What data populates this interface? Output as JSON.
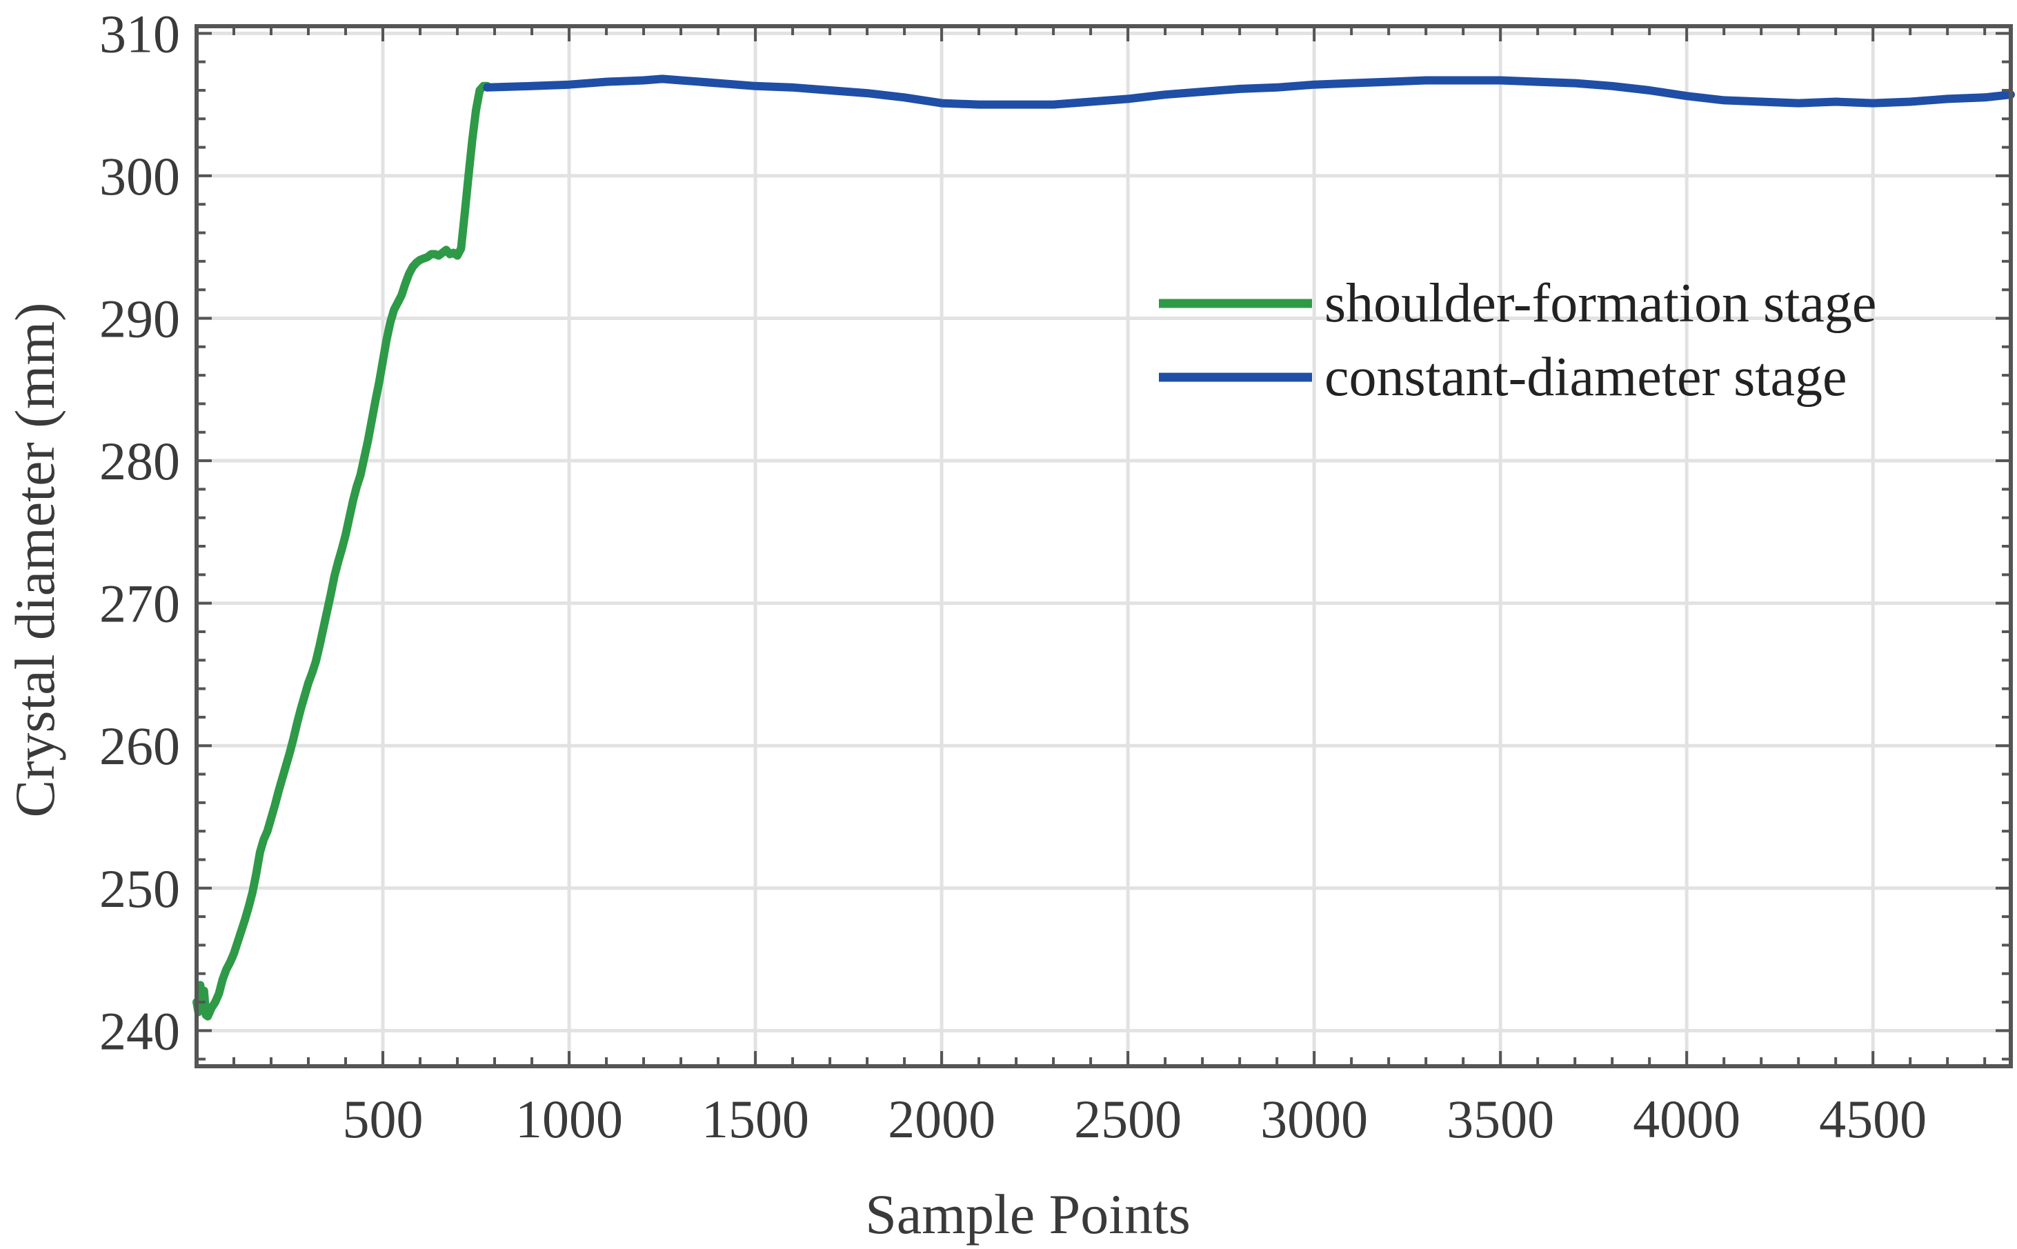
{
  "chart_data": {
    "type": "line",
    "title": "",
    "xlabel": "Sample Points",
    "ylabel": "Crystal diameter (mm)",
    "xlim": [
      0,
      4870
    ],
    "ylim": [
      237.5,
      310.5
    ],
    "xticks": [
      500,
      1000,
      1500,
      2000,
      2500,
      3000,
      3500,
      4000,
      4500
    ],
    "yticks": [
      240,
      250,
      260,
      270,
      280,
      290,
      300,
      310
    ],
    "grid": true,
    "legend_position": "upper-right",
    "series": [
      {
        "name": "shoulder-formation stage",
        "color": "#2e9a47",
        "x": [
          0,
          5,
          10,
          15,
          20,
          25,
          30,
          40,
          50,
          60,
          70,
          80,
          90,
          100,
          110,
          120,
          130,
          140,
          150,
          160,
          170,
          180,
          190,
          200,
          210,
          220,
          230,
          240,
          250,
          260,
          270,
          280,
          290,
          300,
          310,
          320,
          330,
          340,
          350,
          360,
          370,
          380,
          390,
          400,
          410,
          420,
          430,
          440,
          450,
          460,
          470,
          480,
          490,
          500,
          510,
          520,
          530,
          540,
          550,
          560,
          570,
          580,
          590,
          600,
          610,
          620,
          630,
          640,
          650,
          660,
          670,
          680,
          690,
          700,
          710,
          720,
          730,
          740,
          750,
          760,
          770,
          780
        ],
        "y": [
          242.0,
          241.3,
          243.2,
          241.8,
          242.8,
          241.1,
          241.0,
          241.6,
          242.0,
          242.6,
          243.6,
          244.3,
          244.8,
          245.4,
          246.2,
          247.0,
          247.8,
          248.7,
          249.7,
          251.0,
          252.5,
          253.4,
          254.0,
          254.9,
          255.8,
          256.8,
          257.7,
          258.6,
          259.5,
          260.5,
          261.6,
          262.6,
          263.5,
          264.4,
          265.1,
          265.9,
          267.0,
          268.2,
          269.4,
          270.6,
          271.9,
          272.9,
          273.8,
          274.8,
          276.0,
          277.2,
          278.2,
          279.0,
          280.2,
          281.4,
          282.8,
          284.2,
          285.5,
          287.0,
          288.5,
          289.7,
          290.6,
          291.1,
          291.6,
          292.4,
          293.1,
          293.6,
          293.9,
          294.1,
          294.2,
          294.3,
          294.5,
          294.5,
          294.4,
          294.6,
          294.8,
          294.5,
          294.6,
          294.4,
          294.9,
          297.4,
          300.0,
          302.5,
          304.6,
          306.0,
          306.3,
          306.3
        ],
        "note": ""
      },
      {
        "name": "constant-diameter stage",
        "color": "#1f4ea6",
        "x": [
          780,
          900,
          1000,
          1100,
          1200,
          1250,
          1300,
          1400,
          1500,
          1600,
          1700,
          1800,
          1900,
          2000,
          2100,
          2200,
          2300,
          2400,
          2500,
          2600,
          2700,
          2800,
          2900,
          3000,
          3100,
          3200,
          3300,
          3400,
          3500,
          3600,
          3700,
          3800,
          3900,
          4000,
          4100,
          4200,
          4300,
          4400,
          4500,
          4600,
          4700,
          4800,
          4870
        ],
        "y": [
          306.2,
          306.3,
          306.4,
          306.6,
          306.7,
          306.8,
          306.7,
          306.5,
          306.3,
          306.2,
          306.0,
          305.8,
          305.5,
          305.1,
          305.0,
          305.0,
          305.0,
          305.2,
          305.4,
          305.7,
          305.9,
          306.1,
          306.2,
          306.4,
          306.5,
          306.6,
          306.7,
          306.7,
          306.7,
          306.6,
          306.5,
          306.3,
          306.0,
          305.6,
          305.3,
          305.2,
          305.1,
          305.2,
          305.1,
          305.2,
          305.4,
          305.5,
          305.7
        ]
      }
    ]
  }
}
